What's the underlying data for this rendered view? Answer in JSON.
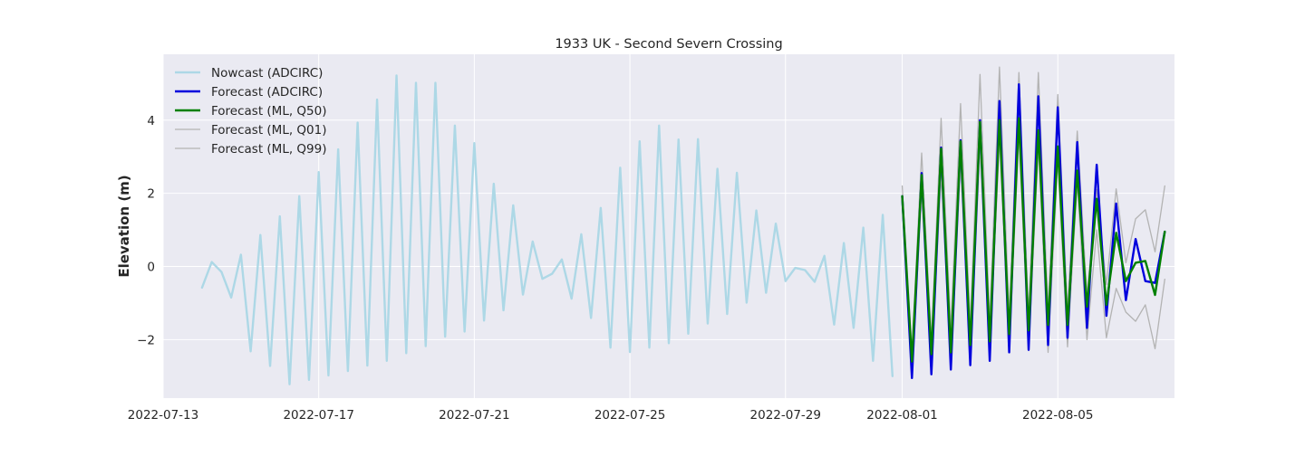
{
  "chart_data": {
    "type": "line",
    "title": "1933 UK - Second Severn Crossing",
    "xlabel": "",
    "ylabel": "Elevation (m)",
    "x_axis": {
      "type": "datetime",
      "start": "2022-07-13",
      "end": "2022-08-08",
      "ticks": [
        "2022-07-13",
        "2022-07-17",
        "2022-07-21",
        "2022-07-25",
        "2022-07-29",
        "2022-08-01",
        "2022-08-05"
      ]
    },
    "ylim": [
      -3.6,
      5.8
    ],
    "yticks": [
      -2,
      0,
      2,
      4
    ],
    "ytick_labels": [
      "−2",
      "0",
      "2",
      "4"
    ],
    "grid": true,
    "legend_position": "top-left",
    "series": [
      {
        "name": "Nowcast (ADCIRC)",
        "color": "#add8e6",
        "start": "2022-07-14 00:00",
        "step_hours": 6,
        "values": [
          -0.58,
          0.12,
          -0.15,
          -0.85,
          0.32,
          -2.32,
          0.86,
          -2.72,
          1.37,
          -3.22,
          1.92,
          -3.1,
          2.58,
          -2.98,
          3.2,
          -2.86,
          3.93,
          -2.71,
          4.56,
          -2.58,
          5.22,
          -2.37,
          5.02,
          -2.18,
          5.02,
          -1.92,
          3.85,
          -1.78,
          3.37,
          -1.48,
          2.26,
          -1.2,
          1.67,
          -0.77,
          0.68,
          -0.34,
          -0.2,
          0.19,
          -0.88,
          0.88,
          -1.41,
          1.6,
          -2.22,
          2.7,
          -2.34,
          3.42,
          -2.22,
          3.85,
          -2.1,
          3.47,
          -1.84,
          3.48,
          -1.56,
          2.67,
          -1.3,
          2.56,
          -0.99,
          1.53,
          -0.72,
          1.17,
          -0.4,
          -0.04,
          -0.1,
          -0.42,
          0.29,
          -1.59,
          0.64,
          -1.68,
          1.06,
          -2.58,
          1.41,
          -3.0
        ]
      },
      {
        "name": "Forecast (ADCIRC)",
        "color": "#0000dd",
        "start": "2022-08-01 00:00",
        "step_hours": 6,
        "values": [
          1.92,
          -3.05,
          2.55,
          -2.95,
          3.25,
          -2.82,
          3.45,
          -2.7,
          4.0,
          -2.58,
          4.52,
          -2.35,
          4.98,
          -2.28,
          4.65,
          -2.15,
          4.35,
          -1.95,
          3.4,
          -1.68,
          2.78,
          -1.35,
          1.72,
          -0.92,
          0.75,
          -0.4,
          -0.45,
          0.95
        ]
      },
      {
        "name": "Forecast (ML, Q50)",
        "color": "#008000",
        "start": "2022-08-01 00:00",
        "step_hours": 6,
        "values": [
          1.92,
          -2.6,
          2.5,
          -2.4,
          3.22,
          -2.35,
          3.42,
          -2.15,
          3.95,
          -2.05,
          4.0,
          -1.85,
          4.05,
          -1.75,
          3.72,
          -1.6,
          3.28,
          -1.6,
          2.62,
          -1.1,
          1.85,
          -1.05,
          0.92,
          -0.4,
          0.1,
          0.15,
          -0.78,
          0.95
        ]
      },
      {
        "name": "Forecast (ML, Q01)",
        "color": "#b3b3b3",
        "start": "2022-08-01 00:00",
        "step_hours": 6,
        "values": [
          1.7,
          -3.0,
          2.0,
          -2.8,
          2.5,
          -2.7,
          2.8,
          -2.65,
          3.3,
          -2.5,
          3.5,
          -2.3,
          3.6,
          -2.3,
          3.3,
          -2.35,
          2.9,
          -2.2,
          2.3,
          -2.0,
          1.0,
          -1.95,
          -0.6,
          -1.25,
          -1.5,
          -1.05,
          -2.25,
          -0.35
        ]
      },
      {
        "name": "Forecast (ML, Q99)",
        "color": "#b3b3b3",
        "start": "2022-08-01 00:00",
        "step_hours": 6,
        "values": [
          2.2,
          -2.3,
          3.1,
          -2.0,
          4.05,
          -1.7,
          4.45,
          -1.6,
          5.25,
          -1.5,
          5.45,
          -1.35,
          5.3,
          -1.3,
          5.3,
          -1.2,
          4.7,
          -1.2,
          3.7,
          -0.8,
          2.1,
          -0.5,
          2.12,
          0.1,
          1.3,
          1.55,
          0.4,
          2.2
        ]
      }
    ]
  }
}
